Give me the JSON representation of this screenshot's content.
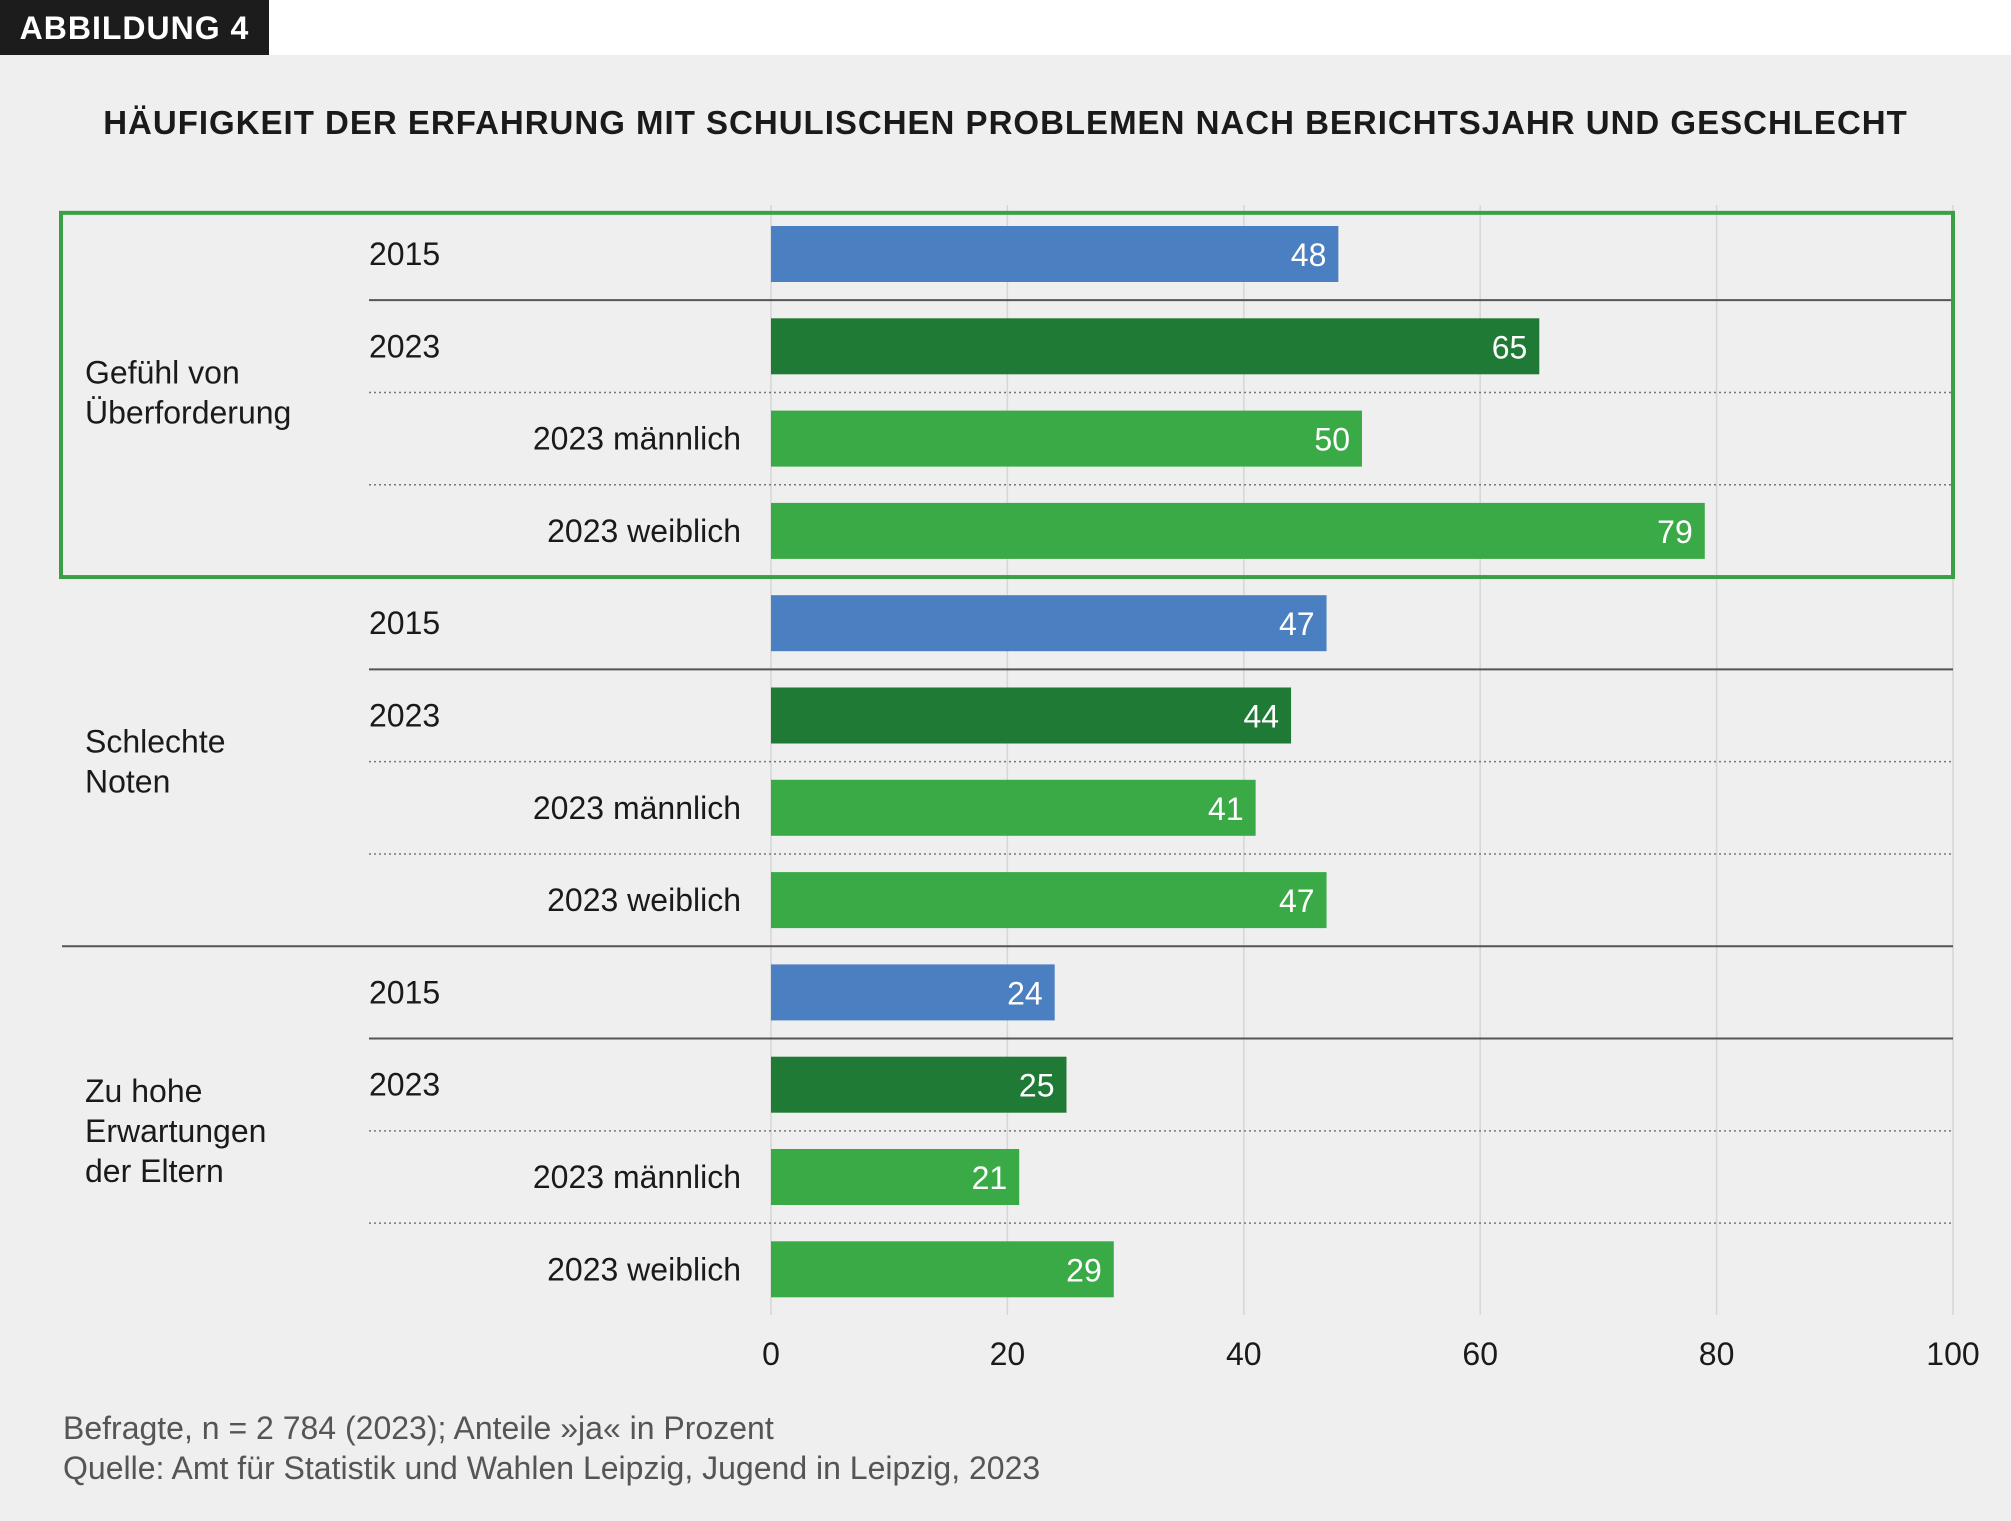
{
  "badge": "ABBILDUNG 4",
  "colors": {
    "y2015": "#4a7fc1",
    "y2023": "#1e7a34",
    "gender2023": "#3aaa46",
    "highlight_border": "#3aa043",
    "background": "#efefef"
  },
  "chart_data": {
    "type": "bar",
    "orientation": "horizontal",
    "title": "HÄUFIGKEIT DER ERFAHRUNG MIT SCHULISCHEN PROBLEMEN NACH BERICHTSJAHR UND GESCHLECHT",
    "xlim": [
      0,
      100
    ],
    "xticks": [
      "0",
      "20",
      "40",
      "60",
      "80",
      "100"
    ],
    "grid": true,
    "highlighted_group": "Gefühl von Überforderung",
    "groups": [
      {
        "label": [
          "Gefühl von",
          "Überforderung"
        ],
        "rows": [
          {
            "label": "2015",
            "value": 48,
            "kind": "y2015"
          },
          {
            "label": "2023",
            "value": 65,
            "kind": "y2023"
          },
          {
            "label": "2023 männlich",
            "value": 50,
            "kind": "gender2023"
          },
          {
            "label": "2023 weiblich",
            "value": 79,
            "kind": "gender2023"
          }
        ]
      },
      {
        "label": [
          "Schlechte",
          "Noten"
        ],
        "rows": [
          {
            "label": "2015",
            "value": 47,
            "kind": "y2015"
          },
          {
            "label": "2023",
            "value": 44,
            "kind": "y2023"
          },
          {
            "label": "2023 männlich",
            "value": 41,
            "kind": "gender2023"
          },
          {
            "label": "2023 weiblich",
            "value": 47,
            "kind": "gender2023"
          }
        ]
      },
      {
        "label": [
          "Zu hohe",
          "Erwartungen",
          "der Eltern"
        ],
        "rows": [
          {
            "label": "2015",
            "value": 24,
            "kind": "y2015"
          },
          {
            "label": "2023",
            "value": 25,
            "kind": "y2023"
          },
          {
            "label": "2023 männlich",
            "value": 21,
            "kind": "gender2023"
          },
          {
            "label": "2023 weiblich",
            "value": 29,
            "kind": "gender2023"
          }
        ]
      }
    ]
  },
  "footer": {
    "note": "Befragte, n = 2 784 (2023); Anteile »ja« in Prozent",
    "source": "Quelle: Amt für Statistik und Wahlen Leipzig, Jugend in Leipzig, 2023"
  }
}
